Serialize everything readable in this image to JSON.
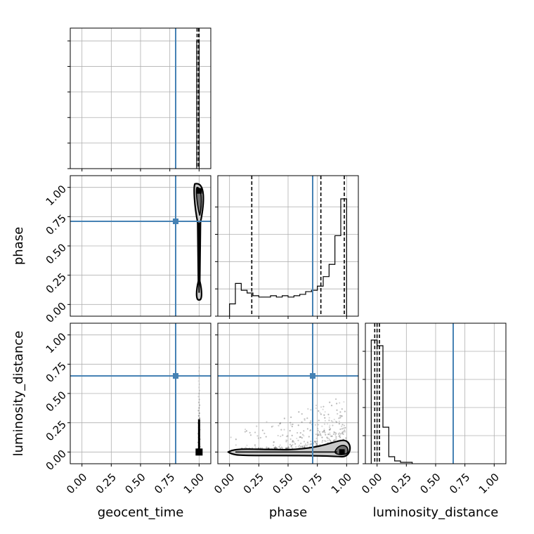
{
  "chart_data": {
    "type": "corner",
    "parameters": [
      "geocent_time",
      "phase",
      "luminosity_distance"
    ],
    "tick_labels": [
      "0.00",
      "0.25",
      "0.50",
      "0.75",
      "1.00"
    ],
    "axis_range": [
      -0.1,
      1.1
    ],
    "grid": true,
    "truths": {
      "geocent_time": 0.8,
      "phase": 0.71,
      "luminosity_distance": 0.65
    },
    "marginals": [
      {
        "parameter": "geocent_time",
        "quantiles": [
          0.983,
          0.997,
          1.0
        ],
        "bins": [
          {
            "x0": 0.98,
            "x1": 1.0,
            "h": 1.0
          }
        ],
        "ymax": 1.1
      },
      {
        "parameter": "phase",
        "quantiles": [
          0.19,
          0.78,
          0.98
        ],
        "bin_edges": [
          0.0,
          0.05,
          0.1,
          0.15,
          0.2,
          0.25,
          0.3,
          0.35,
          0.4,
          0.45,
          0.5,
          0.55,
          0.6,
          0.65,
          0.7,
          0.75,
          0.8,
          0.85,
          0.9,
          0.95,
          1.0
        ],
        "counts": [
          0.09,
          0.24,
          0.19,
          0.17,
          0.15,
          0.14,
          0.14,
          0.15,
          0.14,
          0.15,
          0.14,
          0.15,
          0.16,
          0.18,
          0.19,
          0.22,
          0.29,
          0.38,
          0.59,
          0.86
        ],
        "ymax": 1.03
      },
      {
        "parameter": "luminosity_distance",
        "quantiles": [
          -0.02,
          0.0,
          0.02
        ],
        "bin_edges": [
          -0.05,
          0.0,
          0.05,
          0.1,
          0.15,
          0.2,
          0.25,
          0.3
        ],
        "counts": [
          0.88,
          0.84,
          0.26,
          0.05,
          0.02,
          0.01,
          0.01
        ],
        "ymax": 1.0
      }
    ],
    "pairs": [
      {
        "x": "geocent_time",
        "y": "phase",
        "contour_center": [
          1.0,
          0.55
        ],
        "density_peak": [
          1.0,
          0.95
        ]
      },
      {
        "x": "geocent_time",
        "y": "luminosity_distance",
        "contour_center": [
          1.0,
          0.0
        ],
        "density_peak": [
          1.0,
          0.0
        ]
      },
      {
        "x": "phase",
        "y": "luminosity_distance",
        "contour_center": [
          0.55,
          0.0
        ],
        "density_peak": [
          0.96,
          0.0
        ]
      }
    ]
  }
}
